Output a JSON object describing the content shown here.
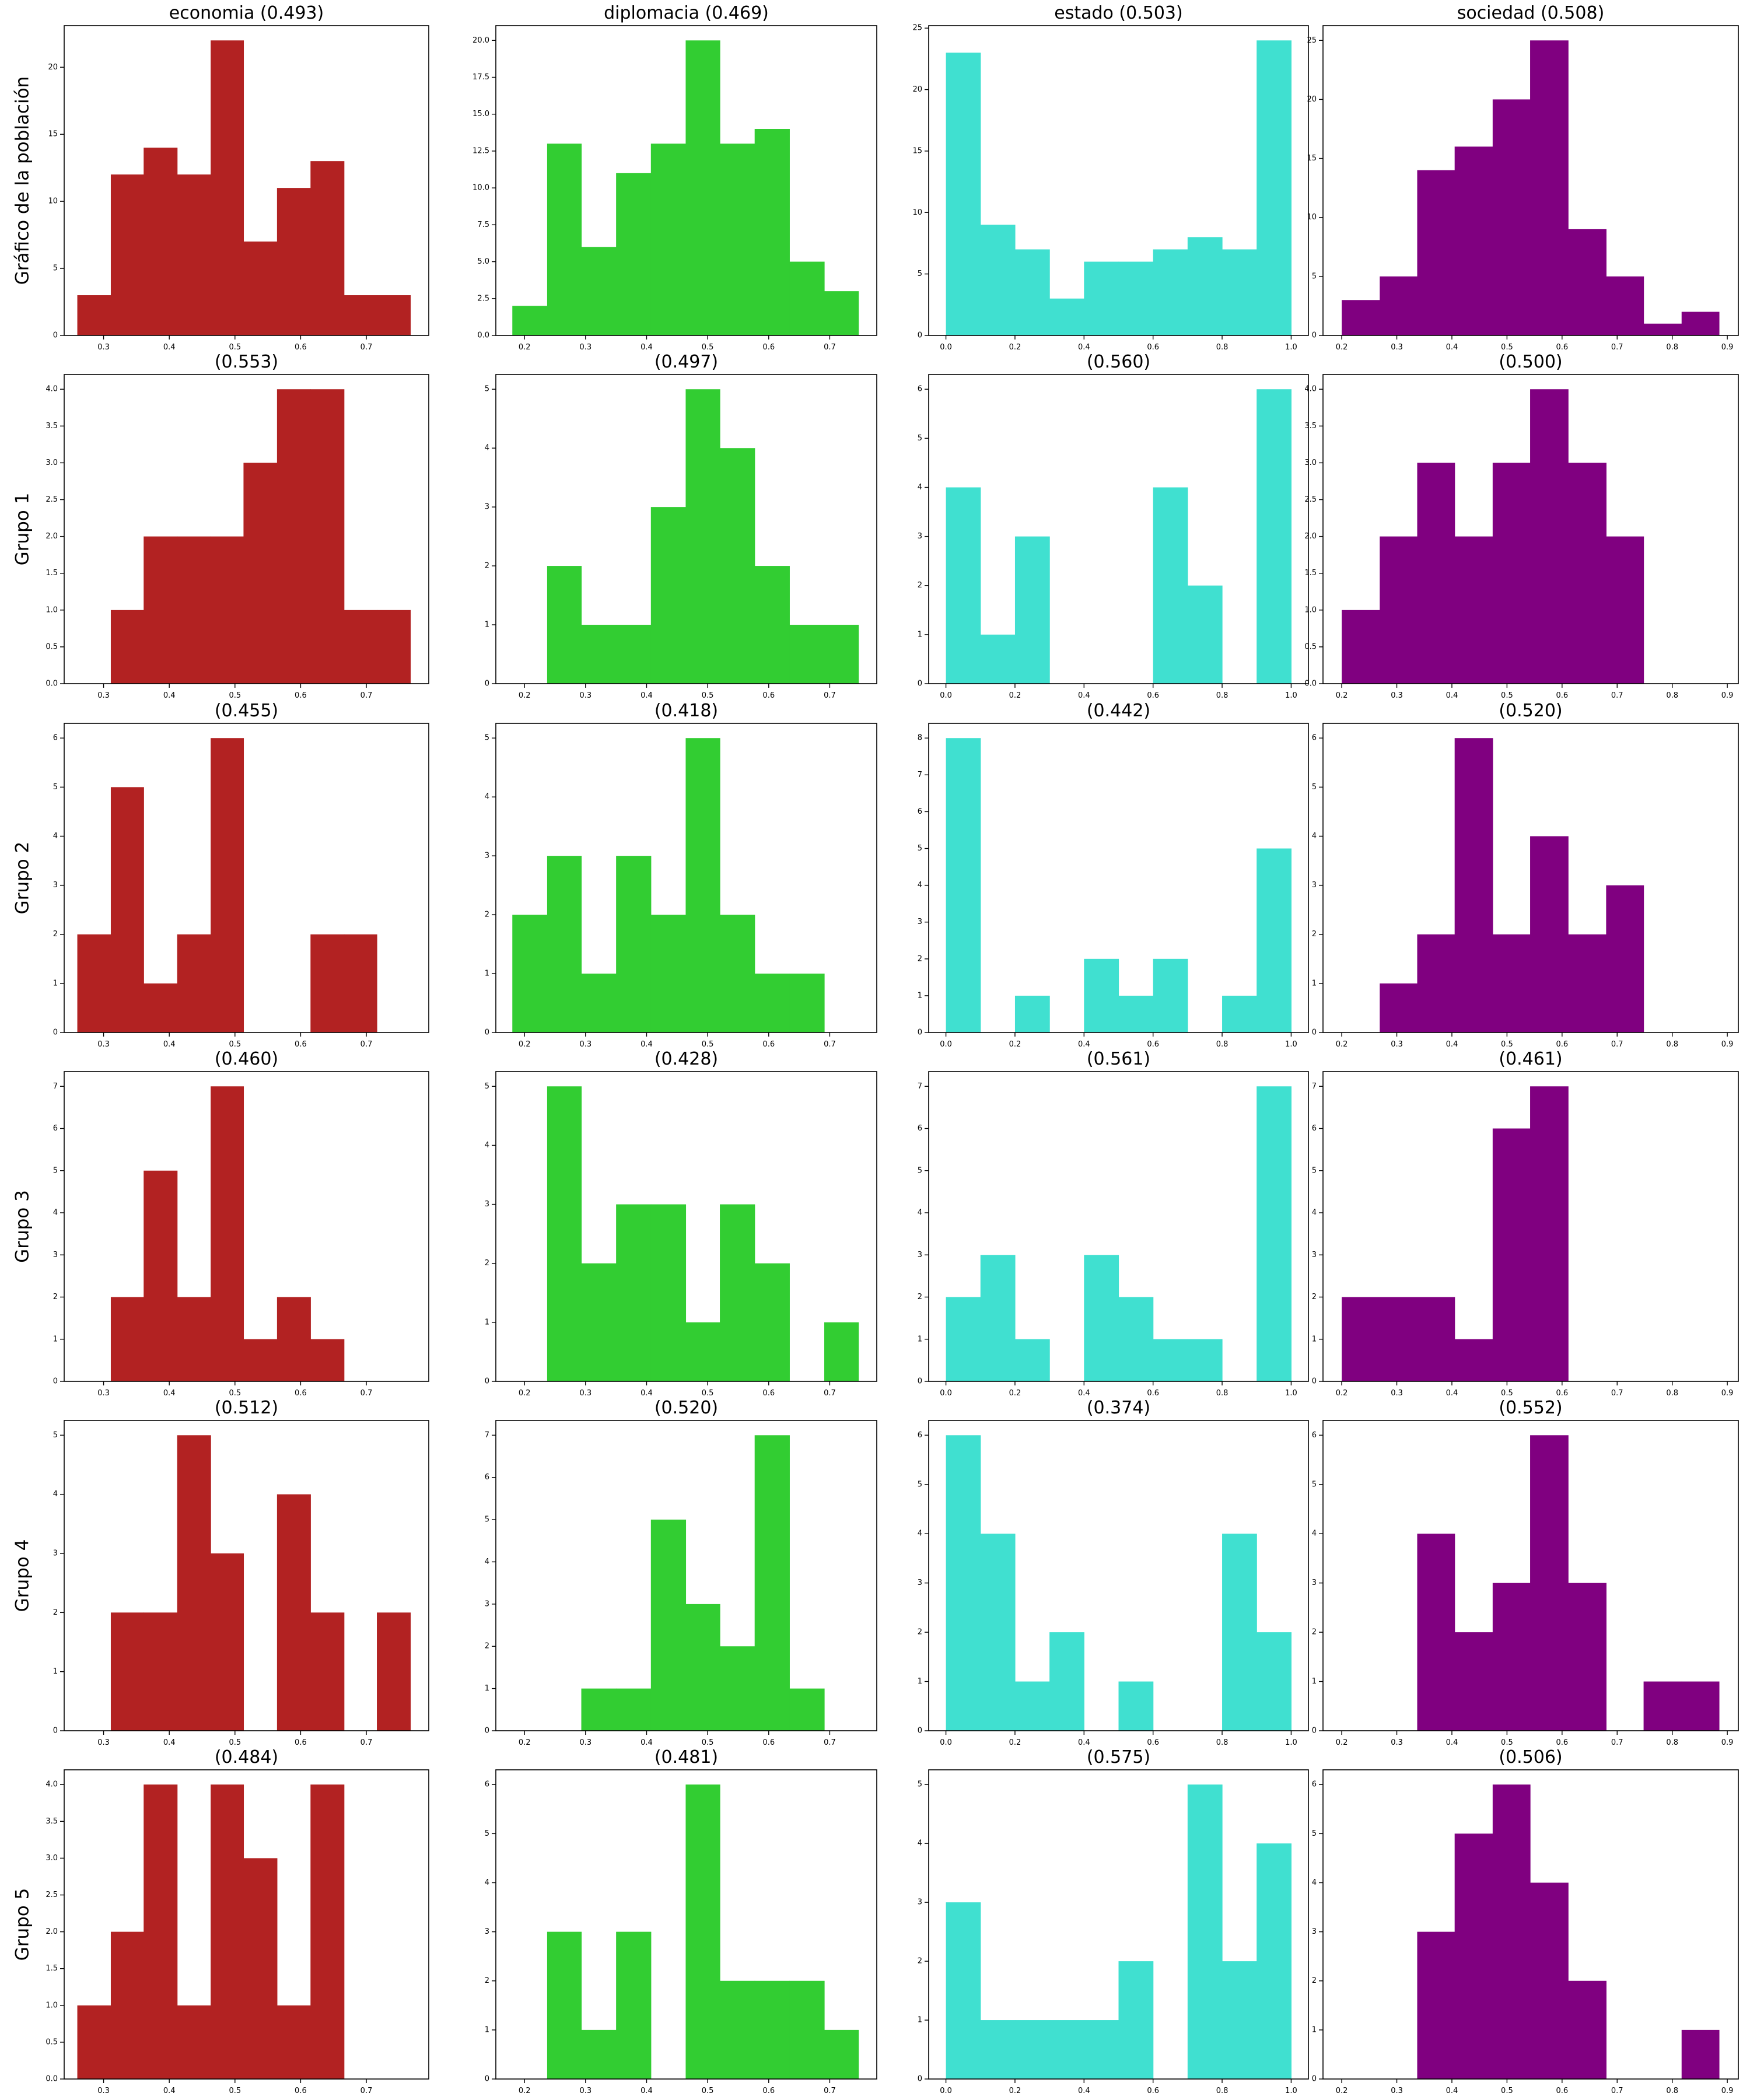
{
  "palette": {
    "economia": "#b22222",
    "diplomacia": "#32cd32",
    "estado": "#40e0d0",
    "sociedad": "#800080"
  },
  "row_labels": [
    "Gráfico de la población",
    "Grupo 1",
    "Grupo 2",
    "Grupo 3",
    "Grupo 4",
    "Grupo 5"
  ],
  "column_axes": [
    {
      "key": "economia",
      "xlim": [
        0.24,
        0.795
      ],
      "xticks": [
        0.3,
        0.4,
        0.5,
        0.6,
        0.7
      ],
      "tick_format": 1
    },
    {
      "key": "diplomacia",
      "xlim": [
        0.153,
        0.777
      ],
      "xticks": [
        0.2,
        0.3,
        0.4,
        0.5,
        0.6,
        0.7
      ],
      "tick_format": 1
    },
    {
      "key": "estado",
      "xlim": [
        -0.05,
        1.05
      ],
      "xticks": [
        0.0,
        0.2,
        0.4,
        0.6,
        0.8,
        1.0
      ],
      "tick_format": 1
    },
    {
      "key": "sociedad",
      "xlim": [
        0.166,
        0.92
      ],
      "xticks": [
        0.2,
        0.3,
        0.4,
        0.5,
        0.6,
        0.7,
        0.8,
        0.9
      ],
      "tick_format": 1
    }
  ],
  "chart_data": [
    {
      "type": "bar",
      "row": 0,
      "col": 0,
      "title": "economia (0.493)",
      "ylim": [
        0,
        23.1
      ],
      "yticks": [
        0,
        5,
        10,
        15,
        20
      ],
      "ytick_format": 0,
      "bin_edges": [
        0.26,
        0.311,
        0.361,
        0.412,
        0.463,
        0.513,
        0.564,
        0.615,
        0.666,
        0.716,
        0.767
      ],
      "values": [
        3,
        12,
        14,
        12,
        22,
        7,
        11,
        13,
        3,
        3
      ]
    },
    {
      "type": "bar",
      "row": 0,
      "col": 1,
      "title": "diplomacia (0.469)",
      "ylim": [
        0,
        21
      ],
      "yticks": [
        0.0,
        2.5,
        5.0,
        7.5,
        10.0,
        12.5,
        15.0,
        17.5,
        20.0
      ],
      "ytick_format": 1,
      "bin_edges": [
        0.18,
        0.237,
        0.293,
        0.35,
        0.407,
        0.464,
        0.52,
        0.577,
        0.634,
        0.691,
        0.747
      ],
      "values": [
        2,
        13,
        6,
        11,
        13,
        20,
        13,
        14,
        5,
        3
      ]
    },
    {
      "type": "bar",
      "row": 0,
      "col": 2,
      "title": "estado (0.503)",
      "ylim": [
        0,
        25.2
      ],
      "yticks": [
        0,
        5,
        10,
        15,
        20,
        25
      ],
      "ytick_format": 0,
      "bin_edges": [
        0.0,
        0.1,
        0.2,
        0.3,
        0.4,
        0.5,
        0.6,
        0.7,
        0.8,
        0.9,
        1.0
      ],
      "values": [
        23,
        9,
        7,
        3,
        6,
        6,
        7,
        8,
        7,
        24
      ]
    },
    {
      "type": "bar",
      "row": 0,
      "col": 3,
      "title": "sociedad (0.508)",
      "ylim": [
        0,
        26.25
      ],
      "yticks": [
        0,
        5,
        10,
        15,
        20,
        25
      ],
      "ytick_format": 0,
      "bin_edges": [
        0.2,
        0.269,
        0.337,
        0.405,
        0.474,
        0.542,
        0.611,
        0.68,
        0.748,
        0.817,
        0.885
      ],
      "values": [
        3,
        5,
        14,
        16,
        20,
        25,
        9,
        5,
        1,
        2
      ]
    },
    {
      "type": "bar",
      "row": 1,
      "col": 0,
      "title": "(0.553)",
      "ylim": [
        0,
        4.2
      ],
      "yticks": [
        0.0,
        0.5,
        1.0,
        1.5,
        2.0,
        2.5,
        3.0,
        3.5,
        4.0
      ],
      "ytick_format": 1,
      "bin_edges": [
        0.26,
        0.311,
        0.361,
        0.412,
        0.463,
        0.513,
        0.564,
        0.615,
        0.666,
        0.716,
        0.767
      ],
      "values": [
        0,
        1,
        2,
        2,
        2,
        3,
        4,
        4,
        1,
        1
      ]
    },
    {
      "type": "bar",
      "row": 1,
      "col": 1,
      "title": "(0.497)",
      "ylim": [
        0,
        5.25
      ],
      "yticks": [
        0,
        1,
        2,
        3,
        4,
        5
      ],
      "ytick_format": 0,
      "bin_edges": [
        0.18,
        0.237,
        0.293,
        0.35,
        0.407,
        0.464,
        0.52,
        0.577,
        0.634,
        0.691,
        0.747
      ],
      "values": [
        0,
        2,
        1,
        1,
        3,
        5,
        4,
        2,
        1,
        1
      ]
    },
    {
      "type": "bar",
      "row": 1,
      "col": 2,
      "title": "(0.560)",
      "ylim": [
        0,
        6.3
      ],
      "yticks": [
        0,
        1,
        2,
        3,
        4,
        5,
        6
      ],
      "ytick_format": 0,
      "bin_edges": [
        0.0,
        0.1,
        0.2,
        0.3,
        0.4,
        0.5,
        0.6,
        0.7,
        0.8,
        0.9,
        1.0
      ],
      "values": [
        4,
        1,
        3,
        0,
        0,
        0,
        4,
        2,
        0,
        6
      ]
    },
    {
      "type": "bar",
      "row": 1,
      "col": 3,
      "title": "(0.500)",
      "ylim": [
        0,
        4.2
      ],
      "yticks": [
        0.0,
        0.5,
        1.0,
        1.5,
        2.0,
        2.5,
        3.0,
        3.5,
        4.0
      ],
      "ytick_format": 1,
      "bin_edges": [
        0.2,
        0.269,
        0.337,
        0.405,
        0.474,
        0.542,
        0.611,
        0.68,
        0.748,
        0.817,
        0.885
      ],
      "values": [
        1,
        2,
        3,
        2,
        3,
        4,
        3,
        2,
        0,
        0
      ]
    },
    {
      "type": "bar",
      "row": 2,
      "col": 0,
      "title": "(0.455)",
      "ylim": [
        0,
        6.3
      ],
      "yticks": [
        0,
        1,
        2,
        3,
        4,
        5,
        6
      ],
      "ytick_format": 0,
      "bin_edges": [
        0.26,
        0.311,
        0.361,
        0.412,
        0.463,
        0.513,
        0.564,
        0.615,
        0.666,
        0.716,
        0.767
      ],
      "values": [
        2,
        5,
        1,
        2,
        6,
        0,
        0,
        2,
        2,
        0
      ]
    },
    {
      "type": "bar",
      "row": 2,
      "col": 1,
      "title": "(0.418)",
      "ylim": [
        0,
        5.25
      ],
      "yticks": [
        0,
        1,
        2,
        3,
        4,
        5
      ],
      "ytick_format": 0,
      "bin_edges": [
        0.18,
        0.237,
        0.293,
        0.35,
        0.407,
        0.464,
        0.52,
        0.577,
        0.634,
        0.691,
        0.747
      ],
      "values": [
        2,
        3,
        1,
        3,
        2,
        5,
        2,
        1,
        1,
        0
      ]
    },
    {
      "type": "bar",
      "row": 2,
      "col": 2,
      "title": "(0.442)",
      "ylim": [
        0,
        8.4
      ],
      "yticks": [
        0,
        1,
        2,
        3,
        4,
        5,
        6,
        7,
        8
      ],
      "ytick_format": 0,
      "bin_edges": [
        0.0,
        0.1,
        0.2,
        0.3,
        0.4,
        0.5,
        0.6,
        0.7,
        0.8,
        0.9,
        1.0
      ],
      "values": [
        8,
        0,
        1,
        0,
        2,
        1,
        2,
        0,
        1,
        5
      ]
    },
    {
      "type": "bar",
      "row": 2,
      "col": 3,
      "title": "(0.520)",
      "ylim": [
        0,
        6.3
      ],
      "yticks": [
        0,
        1,
        2,
        3,
        4,
        5,
        6
      ],
      "ytick_format": 0,
      "bin_edges": [
        0.2,
        0.269,
        0.337,
        0.405,
        0.474,
        0.542,
        0.611,
        0.68,
        0.748,
        0.817,
        0.885
      ],
      "values": [
        0,
        1,
        2,
        6,
        2,
        4,
        2,
        3,
        0,
        0
      ]
    },
    {
      "type": "bar",
      "row": 3,
      "col": 0,
      "title": "(0.460)",
      "ylim": [
        0,
        7.35
      ],
      "yticks": [
        0,
        1,
        2,
        3,
        4,
        5,
        6,
        7
      ],
      "ytick_format": 0,
      "bin_edges": [
        0.26,
        0.311,
        0.361,
        0.412,
        0.463,
        0.513,
        0.564,
        0.615,
        0.666,
        0.716,
        0.767
      ],
      "values": [
        0,
        2,
        5,
        2,
        7,
        1,
        2,
        1,
        0,
        0
      ]
    },
    {
      "type": "bar",
      "row": 3,
      "col": 1,
      "title": "(0.428)",
      "ylim": [
        0,
        5.25
      ],
      "yticks": [
        0,
        1,
        2,
        3,
        4,
        5
      ],
      "ytick_format": 0,
      "bin_edges": [
        0.18,
        0.237,
        0.293,
        0.35,
        0.407,
        0.464,
        0.52,
        0.577,
        0.634,
        0.691,
        0.747
      ],
      "values": [
        0,
        5,
        2,
        3,
        3,
        1,
        3,
        2,
        0,
        1
      ]
    },
    {
      "type": "bar",
      "row": 3,
      "col": 2,
      "title": "(0.561)",
      "ylim": [
        0,
        7.35
      ],
      "yticks": [
        0,
        1,
        2,
        3,
        4,
        5,
        6,
        7
      ],
      "ytick_format": 0,
      "bin_edges": [
        0.0,
        0.1,
        0.2,
        0.3,
        0.4,
        0.5,
        0.6,
        0.7,
        0.8,
        0.9,
        1.0
      ],
      "values": [
        2,
        3,
        1,
        0,
        3,
        2,
        1,
        1,
        0,
        7
      ]
    },
    {
      "type": "bar",
      "row": 3,
      "col": 3,
      "title": "(0.461)",
      "ylim": [
        0,
        7.35
      ],
      "yticks": [
        0,
        1,
        2,
        3,
        4,
        5,
        6,
        7
      ],
      "ytick_format": 0,
      "bin_edges": [
        0.2,
        0.269,
        0.337,
        0.405,
        0.474,
        0.542,
        0.611,
        0.68,
        0.748,
        0.817,
        0.885
      ],
      "values": [
        2,
        2,
        2,
        1,
        6,
        7,
        0,
        0,
        0,
        0
      ]
    },
    {
      "type": "bar",
      "row": 4,
      "col": 0,
      "title": "(0.512)",
      "ylim": [
        0,
        5.25
      ],
      "yticks": [
        0,
        1,
        2,
        3,
        4,
        5
      ],
      "ytick_format": 0,
      "bin_edges": [
        0.26,
        0.311,
        0.361,
        0.412,
        0.463,
        0.513,
        0.564,
        0.615,
        0.666,
        0.716,
        0.767
      ],
      "values": [
        0,
        2,
        2,
        5,
        3,
        0,
        4,
        2,
        0,
        2
      ]
    },
    {
      "type": "bar",
      "row": 4,
      "col": 1,
      "title": "(0.520)",
      "ylim": [
        0,
        7.35
      ],
      "yticks": [
        0,
        1,
        2,
        3,
        4,
        5,
        6,
        7
      ],
      "ytick_format": 0,
      "bin_edges": [
        0.18,
        0.237,
        0.293,
        0.35,
        0.407,
        0.464,
        0.52,
        0.577,
        0.634,
        0.691,
        0.747
      ],
      "values": [
        0,
        0,
        1,
        1,
        5,
        3,
        2,
        7,
        1,
        0
      ]
    },
    {
      "type": "bar",
      "row": 4,
      "col": 2,
      "title": "(0.374)",
      "ylim": [
        0,
        6.3
      ],
      "yticks": [
        0,
        1,
        2,
        3,
        4,
        5,
        6
      ],
      "ytick_format": 0,
      "bin_edges": [
        0.0,
        0.1,
        0.2,
        0.3,
        0.4,
        0.5,
        0.6,
        0.7,
        0.8,
        0.9,
        1.0
      ],
      "values": [
        6,
        4,
        1,
        2,
        0,
        1,
        0,
        0,
        4,
        2
      ]
    },
    {
      "type": "bar",
      "row": 4,
      "col": 3,
      "title": "(0.552)",
      "ylim": [
        0,
        6.3
      ],
      "yticks": [
        0,
        1,
        2,
        3,
        4,
        5,
        6
      ],
      "ytick_format": 0,
      "bin_edges": [
        0.2,
        0.269,
        0.337,
        0.405,
        0.474,
        0.542,
        0.611,
        0.68,
        0.748,
        0.817,
        0.885
      ],
      "values": [
        0,
        0,
        4,
        2,
        3,
        6,
        3,
        0,
        1,
        1
      ]
    },
    {
      "type": "bar",
      "row": 5,
      "col": 0,
      "title": "(0.484)",
      "ylim": [
        0,
        4.2
      ],
      "yticks": [
        0.0,
        0.5,
        1.0,
        1.5,
        2.0,
        2.5,
        3.0,
        3.5,
        4.0
      ],
      "ytick_format": 1,
      "bin_edges": [
        0.26,
        0.311,
        0.361,
        0.412,
        0.463,
        0.513,
        0.564,
        0.615,
        0.666,
        0.716,
        0.767
      ],
      "values": [
        1,
        2,
        4,
        1,
        4,
        3,
        1,
        4,
        0,
        0
      ]
    },
    {
      "type": "bar",
      "row": 5,
      "col": 1,
      "title": "(0.481)",
      "ylim": [
        0,
        6.3
      ],
      "yticks": [
        0,
        1,
        2,
        3,
        4,
        5,
        6
      ],
      "ytick_format": 0,
      "bin_edges": [
        0.18,
        0.237,
        0.293,
        0.35,
        0.407,
        0.464,
        0.52,
        0.577,
        0.634,
        0.691,
        0.747
      ],
      "values": [
        0,
        3,
        1,
        3,
        0,
        6,
        2,
        2,
        2,
        1
      ]
    },
    {
      "type": "bar",
      "row": 5,
      "col": 2,
      "title": "(0.575)",
      "ylim": [
        0,
        5.25
      ],
      "yticks": [
        0,
        1,
        2,
        3,
        4,
        5
      ],
      "ytick_format": 0,
      "bin_edges": [
        0.0,
        0.1,
        0.2,
        0.3,
        0.4,
        0.5,
        0.6,
        0.7,
        0.8,
        0.9,
        1.0
      ],
      "values": [
        3,
        1,
        1,
        1,
        1,
        2,
        0,
        5,
        2,
        4
      ]
    },
    {
      "type": "bar",
      "row": 5,
      "col": 3,
      "title": "(0.506)",
      "ylim": [
        0,
        6.3
      ],
      "yticks": [
        0,
        1,
        2,
        3,
        4,
        5,
        6
      ],
      "ytick_format": 0,
      "bin_edges": [
        0.2,
        0.269,
        0.337,
        0.405,
        0.474,
        0.542,
        0.611,
        0.68,
        0.748,
        0.817,
        0.885
      ],
      "values": [
        0,
        0,
        3,
        5,
        6,
        4,
        2,
        0,
        0,
        1
      ]
    }
  ]
}
